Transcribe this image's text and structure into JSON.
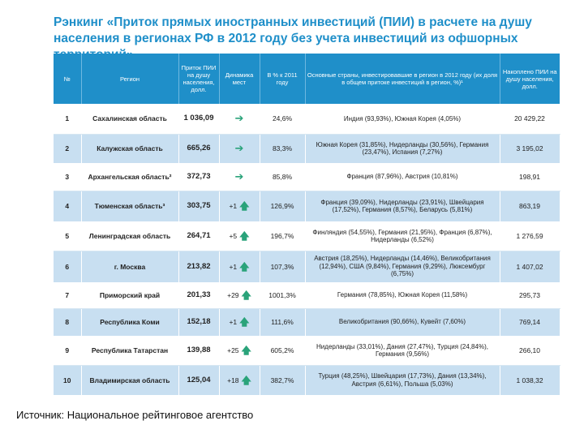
{
  "title": "Рэнкинг «Приток прямых иностранных инвестиций (ПИИ) в расчете на душу населения в регионах РФ в 2012 году без учета инвестиций из офшорных территорий»",
  "headers": {
    "num": "№",
    "region": "Регион",
    "ppi": "Приток ПИИ на душу населения, долл.",
    "dynamics": "Динамика мест",
    "pct2011": "В % к 2011 году",
    "countries": "Основные страны, инвестировавшие в регион в 2012 году (их доля в общем притоке инвестиций в регион, %)¹",
    "accum": "Накоплено ПИИ на душу населения, долл."
  },
  "rows": [
    {
      "num": "1",
      "region": "Сахалинская область",
      "ppi": "1 036,09",
      "dyn_text": "",
      "dyn_icon": "arrow-right-icon",
      "pct": "24,6%",
      "countries": "Индия (93,93%), Южная Корея (4,05%)",
      "accum": "20 429,22"
    },
    {
      "num": "2",
      "region": "Калужская область",
      "ppi": "665,26",
      "dyn_text": "",
      "dyn_icon": "arrow-right-icon",
      "pct": "83,3%",
      "countries": "Южная Корея (31,85%), Нидерланды (30,56%), Германия (23,47%), Испания (7,27%)",
      "accum": "3 195,02"
    },
    {
      "num": "3",
      "region": "Архангельская область²",
      "ppi": "372,73",
      "dyn_text": "",
      "dyn_icon": "arrow-right-icon",
      "pct": "85,8%",
      "countries": "Франция (87,96%), Австрия (10,81%)",
      "accum": "198,91"
    },
    {
      "num": "4",
      "region": "Тюменская область³",
      "ppi": "303,75",
      "dyn_text": "+1",
      "dyn_icon": "arrow-up-icon",
      "pct": "126,9%",
      "countries": "Франция (39,09%), Нидерланды (23,91%), Швейцария (17,52%), Германия (8,57%), Беларусь (5,81%)",
      "accum": "863,19"
    },
    {
      "num": "5",
      "region": "Ленинградская область",
      "ppi": "264,71",
      "dyn_text": "+5",
      "dyn_icon": "arrow-up-icon",
      "pct": "196,7%",
      "countries": "Финляндия (54,55%), Германия (21,95%), Франция (6,87%), Нидерланды (6,52%)",
      "accum": "1 276,59"
    },
    {
      "num": "6",
      "region": "г. Москва",
      "ppi": "213,82",
      "dyn_text": "+1",
      "dyn_icon": "arrow-up-icon",
      "pct": "107,3%",
      "countries": "Австрия (18,25%), Нидерланды (14,46%), Великобритания (12,94%), США (9,84%), Германия (9,29%), Люксембург (6,75%)",
      "accum": "1 407,02"
    },
    {
      "num": "7",
      "region": "Приморский край",
      "ppi": "201,33",
      "dyn_text": "+29",
      "dyn_icon": "arrow-up-icon",
      "pct": "1001,3%",
      "countries": "Германия (78,85%), Южная Корея (11,58%)",
      "accum": "295,73"
    },
    {
      "num": "8",
      "region": "Республика Коми",
      "ppi": "152,18",
      "dyn_text": "+1",
      "dyn_icon": "arrow-up-icon",
      "pct": "111,6%",
      "countries": "Великобритания (90,66%), Кувейт (7,60%)",
      "accum": "769,14"
    },
    {
      "num": "9",
      "region": "Республика Татарстан",
      "ppi": "139,88",
      "dyn_text": "+25",
      "dyn_icon": "arrow-up-icon",
      "pct": "605,2%",
      "countries": "Нидерланды (33,01%), Дания (27,47%), Турция (24,84%), Германия (9,56%)",
      "accum": "266,10"
    },
    {
      "num": "10",
      "region": "Владимирская область",
      "ppi": "125,04",
      "dyn_text": "+18",
      "dyn_icon": "arrow-up-icon",
      "pct": "382,7%",
      "countries": "Турция (48,25%), Швейцария (17,73%), Дания (13,34%), Австрия (6,61%), Польша (5,03%)",
      "accum": "1 038,32"
    }
  ],
  "source": "Источник: Национальное рейтинговое агентство",
  "colors": {
    "title": "#1f8fc9",
    "header_bg": "#1f8fc9",
    "row_alt": "#c8dff1",
    "arrow": "#2aa37a"
  }
}
